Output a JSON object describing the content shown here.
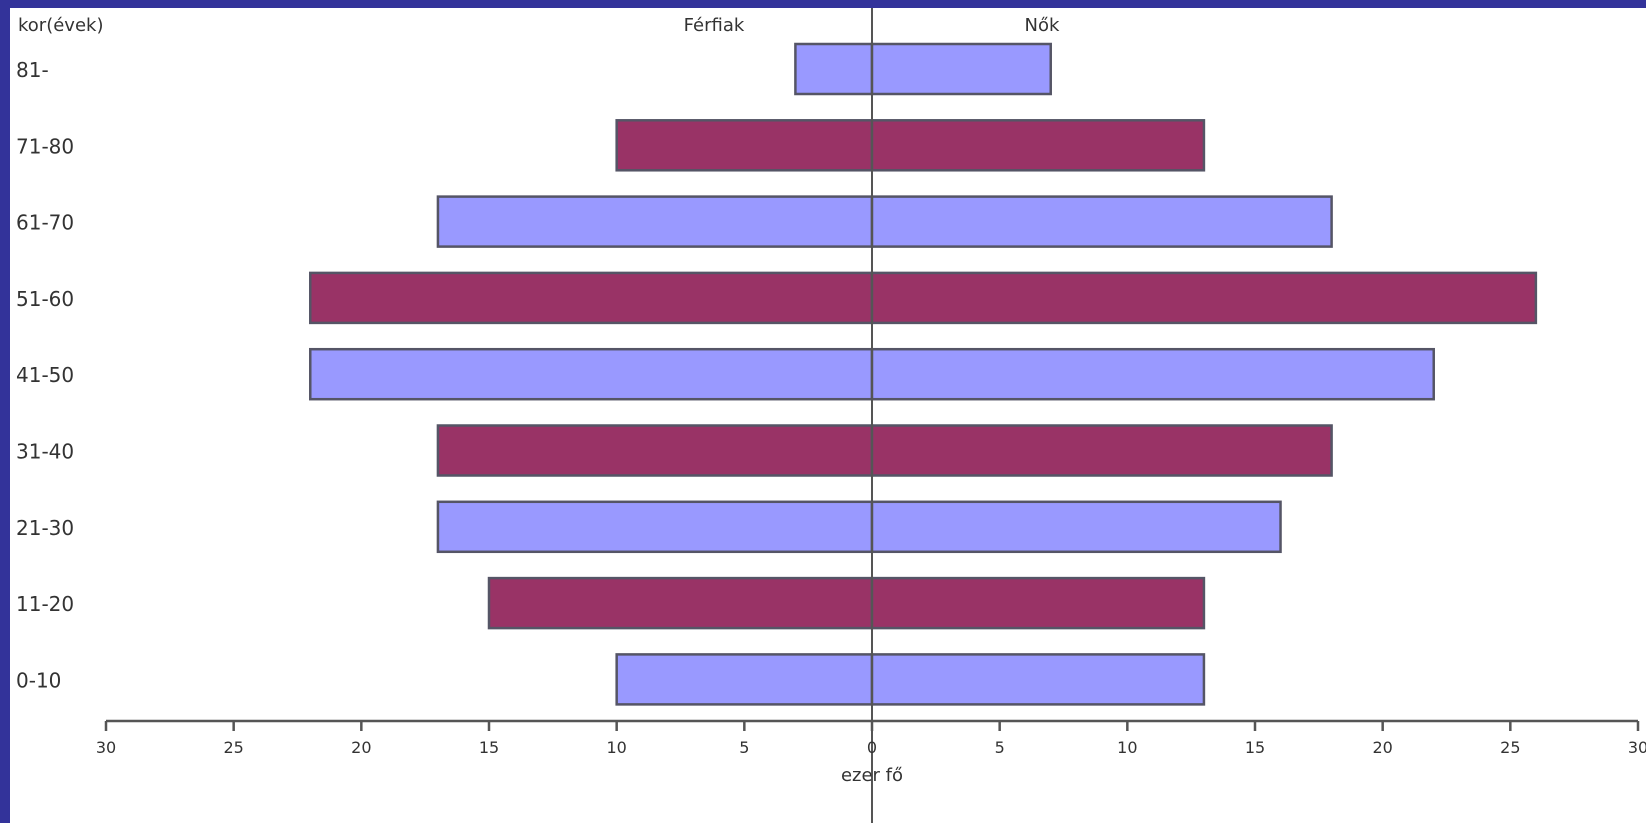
{
  "colors": {
    "frame": "#33339a",
    "lavender": "#9999ff",
    "maroon": "#993366",
    "bar_stroke": "#555566",
    "axis": "#555555",
    "text": "#333333"
  },
  "chart_data": {
    "type": "bar",
    "orientation": "horizontal",
    "title": "",
    "y_axis_label": "kor(évek)",
    "xlabel": "ezer fő",
    "left_header": "Férfiak",
    "right_header": "Nők",
    "xlim": [
      -30,
      30
    ],
    "x_ticks": [
      -30,
      -25,
      -20,
      -15,
      -10,
      -5,
      0,
      5,
      10,
      15,
      20,
      25,
      30
    ],
    "x_tick_labels": [
      "30",
      "25",
      "20",
      "15",
      "10",
      "5",
      "0",
      "5",
      "10",
      "15",
      "20",
      "25",
      "30"
    ],
    "categories": [
      "81-",
      "71-80",
      "61-70",
      "51-60",
      "41-50",
      "31-40",
      "21-30",
      "11-20",
      "0-10"
    ],
    "series": [
      {
        "name": "Férfiak",
        "values": [
          3,
          10,
          17,
          22,
          22,
          17,
          17,
          15,
          10
        ]
      },
      {
        "name": "Nők",
        "values": [
          7,
          13,
          18,
          26,
          22,
          18,
          16,
          13,
          13
        ]
      }
    ],
    "bar_colors": [
      "lavender",
      "maroon",
      "lavender",
      "maroon",
      "lavender",
      "maroon",
      "lavender",
      "maroon",
      "lavender"
    ],
    "grid": false,
    "legend": "none"
  }
}
